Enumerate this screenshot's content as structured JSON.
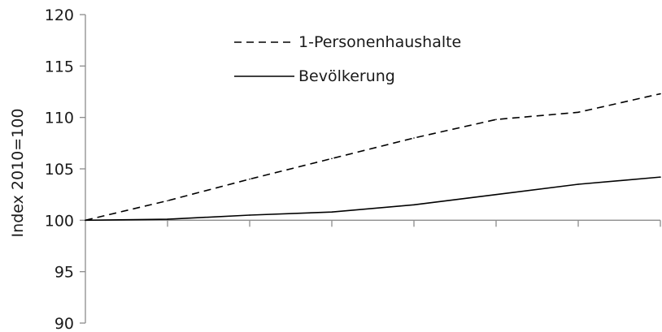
{
  "chart_data": {
    "type": "line",
    "title": "",
    "xlabel": "",
    "ylabel": "Index 2010=100",
    "ylim": [
      90,
      120
    ],
    "yticks": [
      90,
      95,
      100,
      105,
      110,
      115,
      120
    ],
    "x": [
      0,
      1,
      2,
      3,
      4,
      5,
      6,
      7
    ],
    "grid": false,
    "legend_position": "top-center",
    "series": [
      {
        "name": "1-Personenhaushalte",
        "style": "dashed",
        "color": "#000000",
        "values": [
          100,
          101.9,
          104,
          106,
          108,
          109.8,
          110.5,
          112.3
        ]
      },
      {
        "name": "Bevölkerung",
        "style": "solid",
        "color": "#000000",
        "values": [
          100,
          100.1,
          100.5,
          100.8,
          101.5,
          102.5,
          103.5,
          104.2
        ]
      }
    ]
  }
}
